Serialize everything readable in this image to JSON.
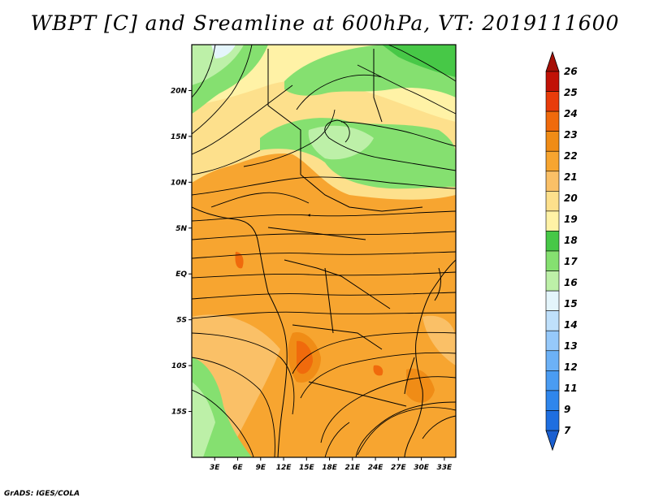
{
  "title": "WBPT [C] and Sreamline at 600hPa, VT: 2019111600",
  "credit": "GrADS: IGES/COLA",
  "map": {
    "lat_labels": [
      "20N",
      "15N",
      "10N",
      "5N",
      "EQ",
      "5S",
      "10S",
      "15S"
    ],
    "lat_values": [
      20,
      15,
      10,
      5,
      0,
      -5,
      -10,
      -15
    ],
    "lon_labels": [
      "3E",
      "6E",
      "9E",
      "12E",
      "15E",
      "18E",
      "21E",
      "24E",
      "27E",
      "30E",
      "33E"
    ],
    "lon_values": [
      3,
      6,
      9,
      12,
      15,
      18,
      21,
      24,
      27,
      30,
      33
    ],
    "lat_range": [
      -20,
      25
    ],
    "lon_range": [
      0,
      34.5
    ]
  },
  "colorbar": {
    "labels": [
      "7",
      "9",
      "11",
      "12",
      "13",
      "14",
      "15",
      "16",
      "17",
      "18",
      "19",
      "20",
      "21",
      "22",
      "23",
      "24",
      "25",
      "26"
    ],
    "colors": [
      "#1e6ee0",
      "#2f86ec",
      "#4a9cf2",
      "#6cb1f6",
      "#96c9fa",
      "#bfe0fb",
      "#e4f5fb",
      "#bdf0a8",
      "#85e070",
      "#47c847",
      "#fff2a6",
      "#fde08c",
      "#fac067",
      "#f7a530",
      "#f08c16",
      "#f06a0c",
      "#e83c0a",
      "#c11206"
    ],
    "over_color": "#a50f06",
    "under_color": "#1a5fd0"
  }
}
